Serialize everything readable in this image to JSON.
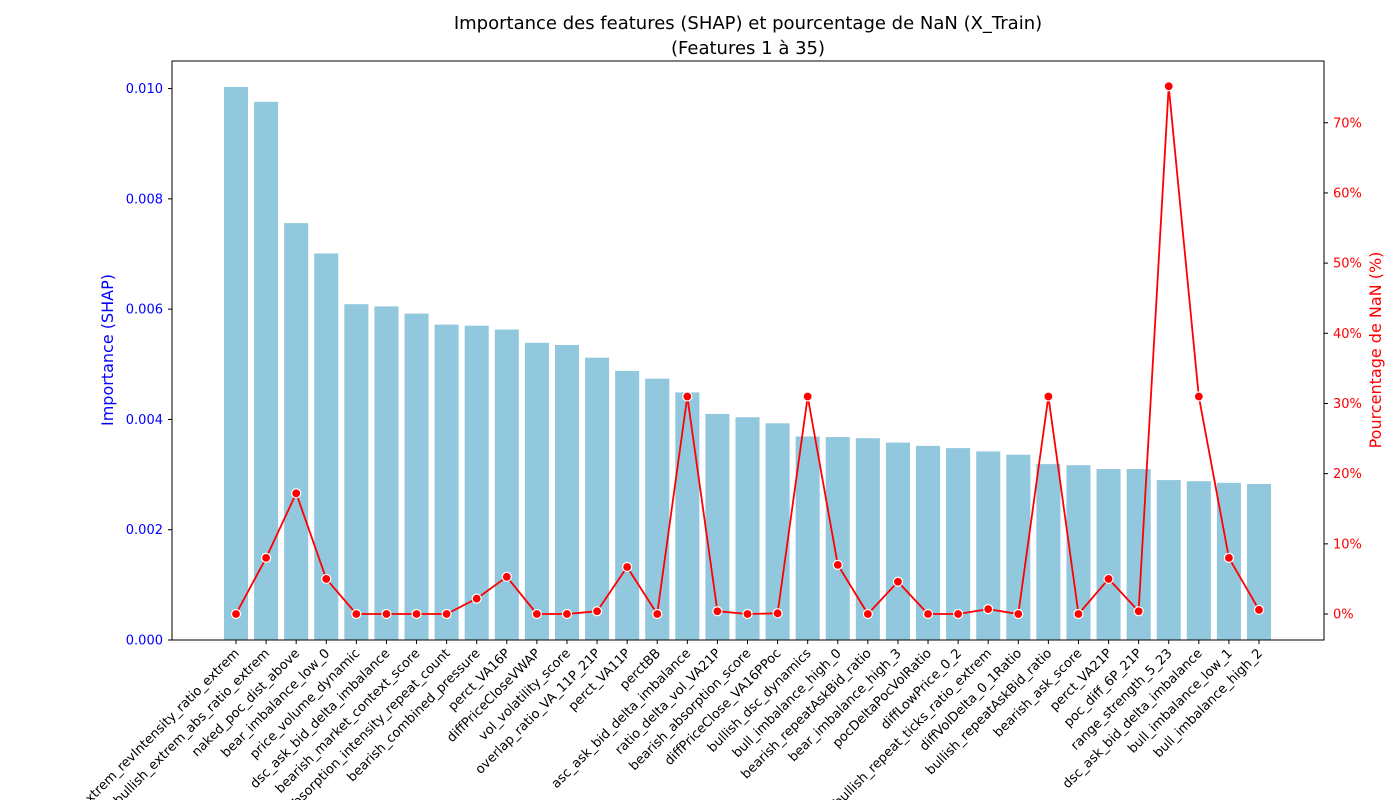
{
  "chart_data": {
    "type": "bar",
    "title": "Importance des features (SHAP) et pourcentage de NaN (X_Train)",
    "subtitle": "(Features 1 à 35)",
    "categories": [
      "extrem_revIntensity_ratio_extrem",
      "bullish_extrem_abs_ratio_extrem",
      "naked_poc_dist_above",
      "bear_imbalance_low_0",
      "price_volume_dynamic",
      "dsc_ask_bid_delta_imbalance",
      "bearish_market_context_score",
      "absorption_intensity_repeat_count",
      "bearish_combined_pressure",
      "perct_VA16P",
      "diffPriceCloseVWAP",
      "vol_volatility_score",
      "overlap_ratio_VA_11P_21P",
      "perct_VA11P",
      "perctBB",
      "asc_ask_bid_delta_imbalance",
      "ratio_delta_vol_VA21P",
      "bearish_absorption_score",
      "diffPriceClose_VA16PPoc",
      "bullish_dsc_dynamics",
      "bull_imbalance_high_0",
      "bearish_repeatAskBid_ratio",
      "bear_imbalance_high_3",
      "pocDeltaPocVolRatio",
      "diffLowPrice_0_2",
      "bullish_repeat_ticks_ratio_extrem",
      "diffVolDelta_0_1Ratio",
      "bullish_repeatAskBid_ratio",
      "bearish_ask_score",
      "perct_VA21P",
      "poc_diff_6P_21P",
      "range_strength_5_23",
      "dsc_ask_bid_delta_imbalance",
      "bull_imbalance_low_1",
      "bull_imbalance_high_2"
    ],
    "series": [
      {
        "name": "",
        "axis": "left",
        "type": "bar",
        "color": "#92c8de",
        "values": [
          0.01003,
          0.00976,
          0.00756,
          0.00701,
          0.00609,
          0.00605,
          0.00592,
          0.00572,
          0.0057,
          0.00563,
          0.00539,
          0.00535,
          0.00512,
          0.00488,
          0.00474,
          0.00449,
          0.0041,
          0.00404,
          0.00393,
          0.00369,
          0.00368,
          0.00366,
          0.00358,
          0.00352,
          0.00348,
          0.00342,
          0.00336,
          0.00319,
          0.00317,
          0.0031,
          0.0031,
          0.0029,
          0.00288,
          0.00285,
          0.00283
        ]
      },
      {
        "name": "",
        "axis": "right",
        "type": "line",
        "color": "#ff0000",
        "values": [
          0.0,
          8.0,
          17.2,
          5.0,
          0.0,
          0.0,
          0.0,
          0.0,
          2.2,
          5.3,
          0.0,
          0.0,
          0.4,
          6.7,
          0.0,
          31.0,
          0.4,
          0.0,
          0.1,
          31.0,
          7.0,
          0.0,
          4.6,
          0.0,
          0.0,
          0.7,
          0.0,
          31.0,
          0.0,
          5.0,
          0.4,
          75.2,
          31.0,
          8.0,
          0.6
        ]
      }
    ],
    "ylabel": "Importance (SHAP)",
    "ylabel_color": "#0000ff",
    "ylim": [
      0,
      0.0105
    ],
    "yticks": [
      0.0,
      0.002,
      0.004,
      0.006,
      0.008,
      0.01
    ],
    "ytick_labels": [
      "0.000",
      "0.002",
      "0.004",
      "0.006",
      "0.008",
      "0.010"
    ],
    "y2label": "Pourcentage de NaN (%)",
    "y2label_color": "#ff0000",
    "y2lim": [
      -3.7,
      78.8
    ],
    "y2ticks": [
      0,
      10,
      20,
      30,
      40,
      50,
      60,
      70
    ],
    "y2tick_labels": [
      "0%",
      "10%",
      "20%",
      "30%",
      "40%",
      "50%",
      "60%",
      "70%"
    ],
    "grid": false,
    "legend": "none"
  }
}
